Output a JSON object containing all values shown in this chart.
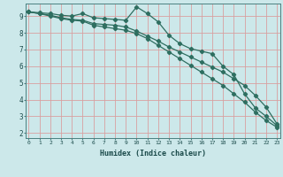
{
  "title": "",
  "xlabel": "Humidex (Indice chaleur)",
  "ylabel": "",
  "bg_color": "#cce8ea",
  "grid_color_major": "#e8b0b0",
  "grid_color_minor": "#d8e8e8",
  "line_color": "#2e6e60",
  "x_ticks": [
    0,
    1,
    2,
    3,
    4,
    5,
    6,
    7,
    8,
    9,
    10,
    11,
    12,
    13,
    14,
    15,
    16,
    17,
    18,
    19,
    20,
    21,
    22,
    23
  ],
  "y_ticks": [
    2,
    3,
    4,
    5,
    6,
    7,
    8,
    9
  ],
  "xlim": [
    -0.3,
    23.3
  ],
  "ylim": [
    1.7,
    9.75
  ],
  "line1_y": [
    9.25,
    9.2,
    9.15,
    9.05,
    9.0,
    9.15,
    8.9,
    8.85,
    8.8,
    8.75,
    9.55,
    9.15,
    8.65,
    7.85,
    7.35,
    7.05,
    6.9,
    6.75,
    6.0,
    5.5,
    4.35,
    3.5,
    3.0,
    2.45
  ],
  "line2_y": [
    9.25,
    9.15,
    9.05,
    8.9,
    8.8,
    8.75,
    8.55,
    8.5,
    8.45,
    8.35,
    8.1,
    7.8,
    7.5,
    7.15,
    6.85,
    6.55,
    6.25,
    5.95,
    5.65,
    5.25,
    4.85,
    4.25,
    3.55,
    2.55
  ],
  "line3_y": [
    9.25,
    9.15,
    9.0,
    8.85,
    8.75,
    8.7,
    8.45,
    8.35,
    8.25,
    8.15,
    7.95,
    7.65,
    7.25,
    6.85,
    6.45,
    6.05,
    5.65,
    5.25,
    4.85,
    4.35,
    3.85,
    3.25,
    2.75,
    2.35
  ]
}
